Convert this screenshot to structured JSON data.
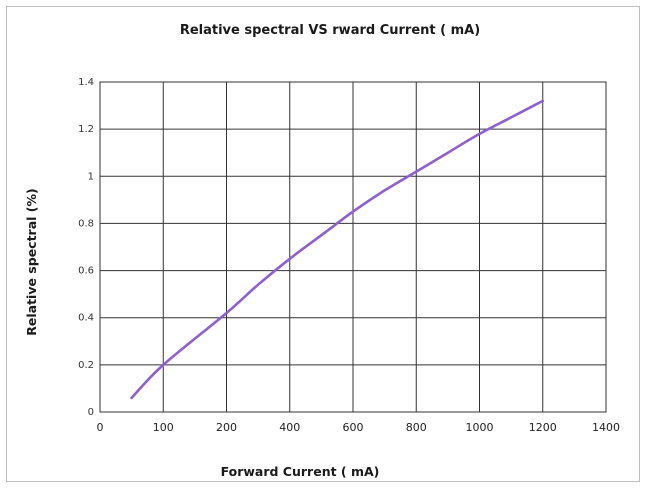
{
  "chart_data": {
    "type": "line",
    "title": "Relative spectral  VS   rward  Current ( mA)",
    "xlabel": "Forward  Current ( mA)",
    "ylabel": "Relative spectral  (%)",
    "xlim": [
      0,
      1400
    ],
    "ylim": [
      0,
      1.4
    ],
    "xticks": [
      "0",
      "100",
      "200",
      "400",
      "600",
      "800",
      "1000",
      "1200",
      "1400"
    ],
    "yticks": [
      "0",
      "0.2",
      "0.4",
      "0.6",
      "0.8",
      "1",
      "1.2",
      "1.4"
    ],
    "grid": true,
    "line_color": "#8e5fd0",
    "series": [
      {
        "x": [
          50,
          100,
          200,
          300,
          400,
          500,
          600,
          700,
          800,
          900,
          1000,
          1100,
          1200
        ],
        "values": [
          0.06,
          0.2,
          0.42,
          0.54,
          0.65,
          0.75,
          0.85,
          0.94,
          1.02,
          1.1,
          1.18,
          1.25,
          1.32
        ]
      }
    ]
  }
}
